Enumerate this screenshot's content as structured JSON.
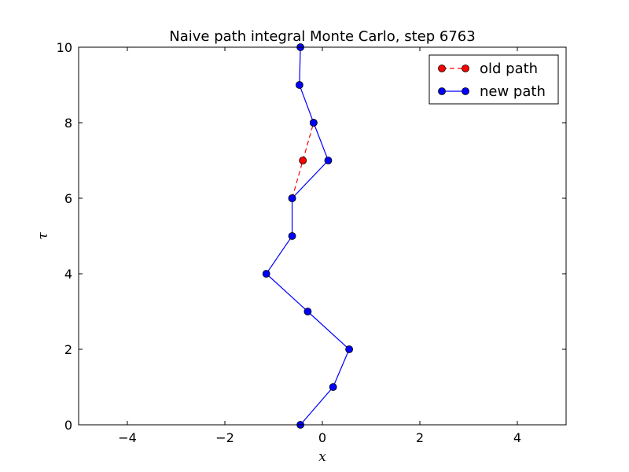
{
  "chart_data": {
    "type": "line",
    "title": "Naive path integral Monte Carlo, step 6763",
    "xlabel": "x",
    "ylabel": "τ",
    "xlim": [
      -5,
      5
    ],
    "ylim": [
      0,
      10
    ],
    "xticks": [
      -4,
      -2,
      0,
      2,
      4
    ],
    "yticks": [
      0,
      2,
      4,
      6,
      8,
      10
    ],
    "grid": false,
    "legend_position": "top-right",
    "series": [
      {
        "name": "old path",
        "color": "#ff0000",
        "line_style": "dashed",
        "marker": "circle",
        "points": [
          {
            "x": -0.62,
            "y": 6
          },
          {
            "x": -0.4,
            "y": 7
          },
          {
            "x": -0.18,
            "y": 8
          }
        ]
      },
      {
        "name": "new path",
        "color": "#0000ff",
        "line_style": "solid",
        "marker": "circle",
        "points": [
          {
            "x": -0.45,
            "y": 0
          },
          {
            "x": 0.22,
            "y": 1
          },
          {
            "x": 0.55,
            "y": 2
          },
          {
            "x": -0.3,
            "y": 3
          },
          {
            "x": -1.15,
            "y": 4
          },
          {
            "x": -0.62,
            "y": 5
          },
          {
            "x": -0.62,
            "y": 6
          },
          {
            "x": 0.12,
            "y": 7
          },
          {
            "x": -0.18,
            "y": 8
          },
          {
            "x": -0.47,
            "y": 9
          },
          {
            "x": -0.45,
            "y": 10
          }
        ]
      }
    ]
  }
}
